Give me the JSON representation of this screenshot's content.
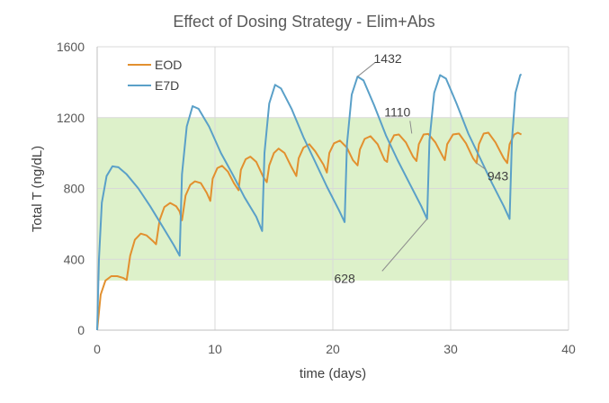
{
  "chart_data": {
    "type": "line",
    "title": "Effect of Dosing Strategy - Elim+Abs",
    "xlabel": "time (days)",
    "ylabel": "Total T (ng/dL)",
    "xlim": [
      0,
      40
    ],
    "ylim": [
      0,
      1600
    ],
    "x_ticks": [
      0,
      10,
      20,
      30,
      40
    ],
    "y_ticks": [
      0,
      400,
      800,
      1200,
      1600
    ],
    "grid": true,
    "legend_position": "top-left",
    "shaded_band": {
      "y_range": [
        280,
        1200
      ],
      "color": "#d9f0c4"
    },
    "series": [
      {
        "name": "EOD",
        "color": "#e2902f",
        "points": [
          [
            0,
            0
          ],
          [
            0.3,
            200
          ],
          [
            0.7,
            280
          ],
          [
            1.2,
            305
          ],
          [
            1.7,
            305
          ],
          [
            2.2,
            295
          ],
          [
            2.5,
            283
          ],
          [
            2.8,
            420
          ],
          [
            3.2,
            510
          ],
          [
            3.7,
            545
          ],
          [
            4.2,
            535
          ],
          [
            4.7,
            505
          ],
          [
            5,
            485
          ],
          [
            5.3,
            620
          ],
          [
            5.7,
            695
          ],
          [
            6.2,
            718
          ],
          [
            6.7,
            700
          ],
          [
            7,
            670
          ],
          [
            7.2,
            620
          ],
          [
            7.5,
            760
          ],
          [
            7.9,
            820
          ],
          [
            8.3,
            840
          ],
          [
            8.8,
            830
          ],
          [
            9.3,
            775
          ],
          [
            9.6,
            730
          ],
          [
            9.8,
            855
          ],
          [
            10.2,
            915
          ],
          [
            10.6,
            928
          ],
          [
            11.1,
            895
          ],
          [
            11.6,
            830
          ],
          [
            12,
            790
          ],
          [
            12.2,
            905
          ],
          [
            12.6,
            965
          ],
          [
            13,
            980
          ],
          [
            13.5,
            950
          ],
          [
            14.1,
            865
          ],
          [
            14.4,
            835
          ],
          [
            14.6,
            930
          ],
          [
            15,
            1000
          ],
          [
            15.4,
            1025
          ],
          [
            15.9,
            1000
          ],
          [
            16.5,
            920
          ],
          [
            16.9,
            870
          ],
          [
            17.1,
            970
          ],
          [
            17.5,
            1030
          ],
          [
            18,
            1050
          ],
          [
            18.5,
            1010
          ],
          [
            19.2,
            935
          ],
          [
            19.5,
            890
          ],
          [
            19.7,
            1000
          ],
          [
            20.1,
            1055
          ],
          [
            20.6,
            1070
          ],
          [
            21.2,
            1030
          ],
          [
            21.7,
            960
          ],
          [
            22.1,
            930
          ],
          [
            22.3,
            1020
          ],
          [
            22.7,
            1080
          ],
          [
            23.2,
            1095
          ],
          [
            23.8,
            1050
          ],
          [
            24.4,
            960
          ],
          [
            24.6,
            950
          ],
          [
            24.8,
            1050
          ],
          [
            25.2,
            1100
          ],
          [
            25.6,
            1105
          ],
          [
            26.2,
            1060
          ],
          [
            26.8,
            980
          ],
          [
            27.1,
            955
          ],
          [
            27.3,
            1050
          ],
          [
            27.7,
            1105
          ],
          [
            28.1,
            1108
          ],
          [
            28.7,
            1060
          ],
          [
            29.3,
            985
          ],
          [
            29.5,
            960
          ],
          [
            29.7,
            1050
          ],
          [
            30.2,
            1105
          ],
          [
            30.7,
            1110
          ],
          [
            31.3,
            1055
          ],
          [
            31.9,
            970
          ],
          [
            32.2,
            943
          ],
          [
            32.4,
            1050
          ],
          [
            32.8,
            1110
          ],
          [
            33.2,
            1115
          ],
          [
            33.8,
            1060
          ],
          [
            34.5,
            970
          ],
          [
            34.8,
            943
          ],
          [
            35,
            1050
          ],
          [
            35.4,
            1105
          ],
          [
            35.7,
            1115
          ],
          [
            36,
            1105
          ]
        ]
      },
      {
        "name": "E7D",
        "color": "#5aa0c8",
        "points": [
          [
            0,
            0
          ],
          [
            0.15,
            400
          ],
          [
            0.4,
            720
          ],
          [
            0.8,
            870
          ],
          [
            1.3,
            925
          ],
          [
            1.8,
            920
          ],
          [
            2.5,
            880
          ],
          [
            3.5,
            800
          ],
          [
            4.5,
            700
          ],
          [
            5.5,
            590
          ],
          [
            6.5,
            480
          ],
          [
            7,
            420
          ],
          [
            7.2,
            880
          ],
          [
            7.6,
            1150
          ],
          [
            8.1,
            1265
          ],
          [
            8.6,
            1250
          ],
          [
            9.5,
            1150
          ],
          [
            10.5,
            1000
          ],
          [
            11.5,
            880
          ],
          [
            12.5,
            750
          ],
          [
            13.5,
            640
          ],
          [
            14,
            560
          ],
          [
            14.2,
            1000
          ],
          [
            14.6,
            1280
          ],
          [
            15.1,
            1385
          ],
          [
            15.6,
            1365
          ],
          [
            16.5,
            1250
          ],
          [
            17.5,
            1090
          ],
          [
            18.5,
            950
          ],
          [
            19.5,
            810
          ],
          [
            20.5,
            680
          ],
          [
            21,
            610
          ],
          [
            21.2,
            1050
          ],
          [
            21.6,
            1330
          ],
          [
            22.1,
            1432
          ],
          [
            22.6,
            1410
          ],
          [
            23.5,
            1270
          ],
          [
            24.5,
            1100
          ],
          [
            25.5,
            960
          ],
          [
            26.5,
            830
          ],
          [
            27.5,
            700
          ],
          [
            28,
            628
          ],
          [
            28.2,
            1070
          ],
          [
            28.6,
            1340
          ],
          [
            29.1,
            1440
          ],
          [
            29.6,
            1420
          ],
          [
            30.5,
            1280
          ],
          [
            31.5,
            1110
          ],
          [
            32.5,
            970
          ],
          [
            33.5,
            830
          ],
          [
            34.5,
            700
          ],
          [
            35,
            628
          ],
          [
            35.2,
            1070
          ],
          [
            35.5,
            1340
          ],
          [
            35.9,
            1440
          ],
          [
            36,
            1445
          ]
        ]
      }
    ],
    "annotations": [
      {
        "text": "1432",
        "x": 22.1,
        "y": 1432
      },
      {
        "text": "1110",
        "x": 26.7,
        "y": 1110
      },
      {
        "text": "943",
        "x": 32.2,
        "y": 943
      },
      {
        "text": "628",
        "x": 28.0,
        "y": 628
      }
    ]
  }
}
